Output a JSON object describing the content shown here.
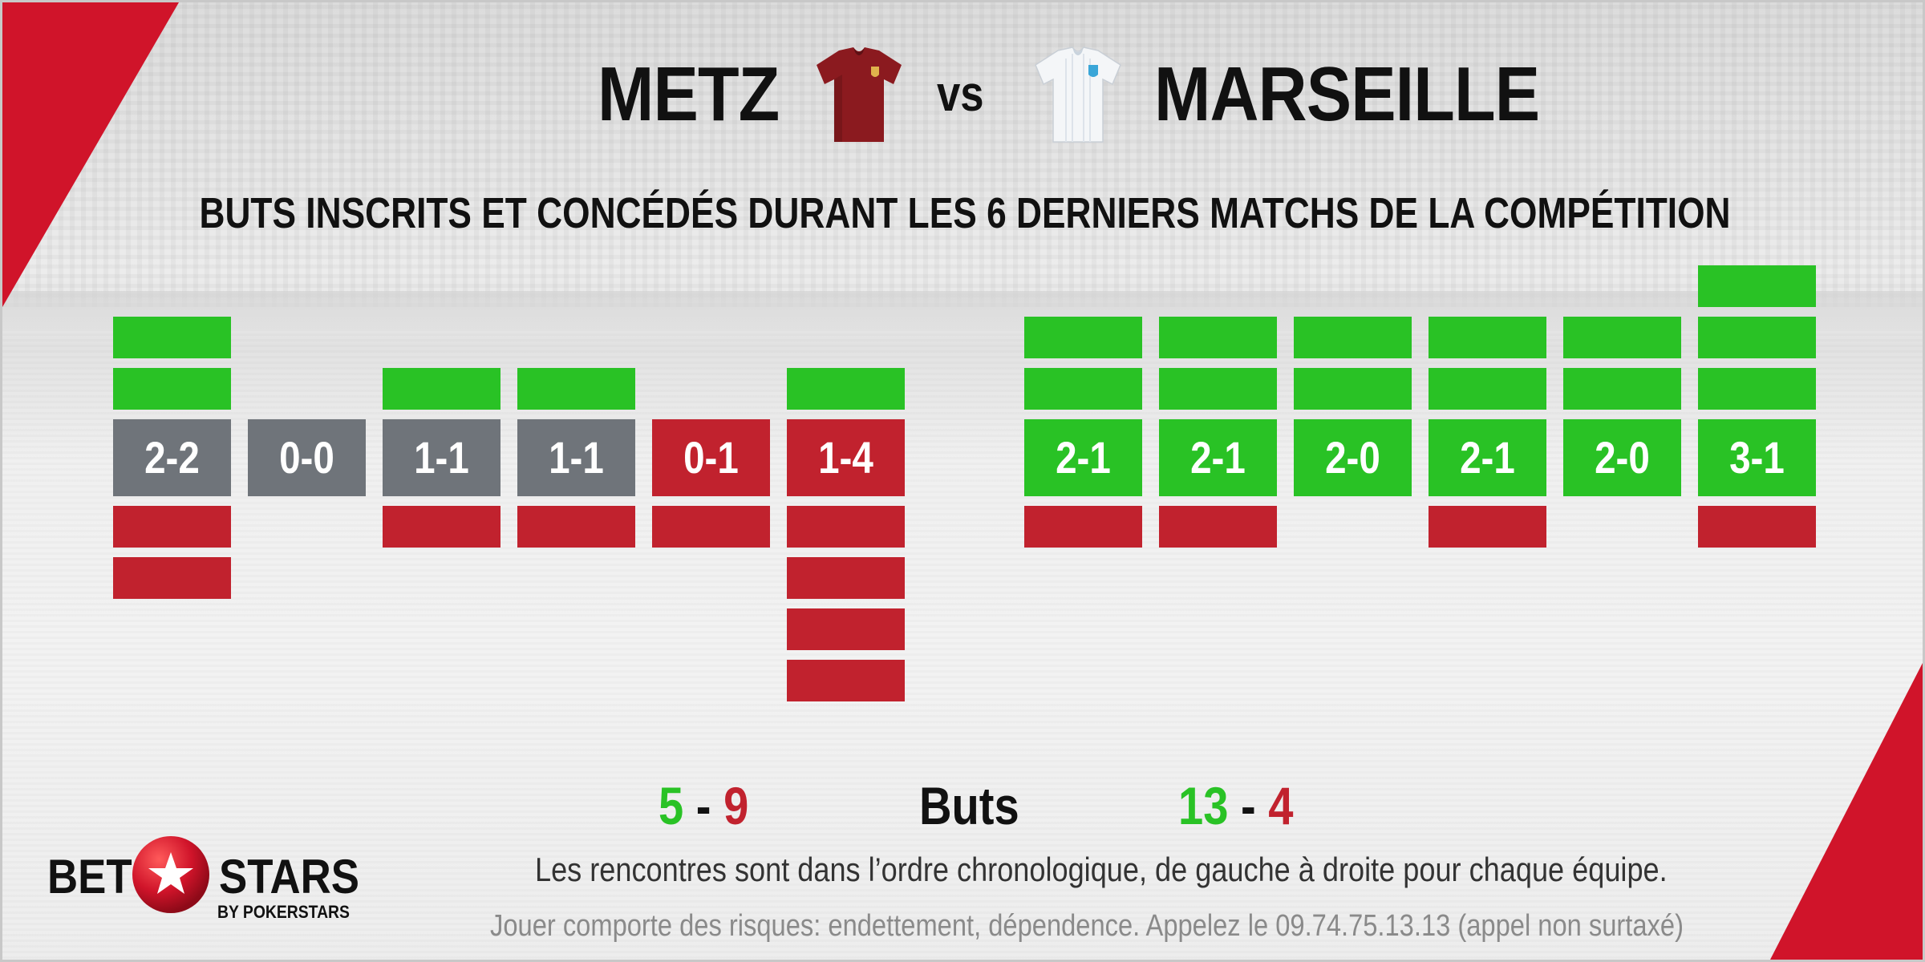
{
  "header": {
    "home_team": "METZ",
    "vs": "vs",
    "away_team": "MARSEILLE",
    "subtitle": "BUTS INSCRITS ET CONCÉDÉS DURANT LES 6 DERNIERS MATCHS DE LA COMPÉTITION"
  },
  "colors": {
    "brand_red": "#d0142a",
    "scored_green": "#29c225",
    "conceded_red": "#c1222e",
    "draw_gray": "#6f747a",
    "home_jersey": "#8b1a1f",
    "away_jersey": "#f4f6f8"
  },
  "icons": {
    "home_jersey": "metz-jersey-icon",
    "away_jersey": "marseille-jersey-icon",
    "logo_ball": "star-ball-icon"
  },
  "chart_data": [
    {
      "type": "bar",
      "team": "METZ",
      "matches": [
        {
          "score": "2-2",
          "scored": 2,
          "conceded": 2,
          "result": "draw"
        },
        {
          "score": "0-0",
          "scored": 0,
          "conceded": 0,
          "result": "draw"
        },
        {
          "score": "1-1",
          "scored": 1,
          "conceded": 1,
          "result": "draw"
        },
        {
          "score": "1-1",
          "scored": 1,
          "conceded": 1,
          "result": "draw"
        },
        {
          "score": "0-1",
          "scored": 0,
          "conceded": 1,
          "result": "loss"
        },
        {
          "score": "1-4",
          "scored": 1,
          "conceded": 4,
          "result": "loss"
        }
      ]
    },
    {
      "type": "bar",
      "team": "MARSEILLE",
      "matches": [
        {
          "score": "2-1",
          "scored": 2,
          "conceded": 1,
          "result": "win"
        },
        {
          "score": "2-1",
          "scored": 2,
          "conceded": 1,
          "result": "win"
        },
        {
          "score": "2-0",
          "scored": 2,
          "conceded": 0,
          "result": "win"
        },
        {
          "score": "2-1",
          "scored": 2,
          "conceded": 1,
          "result": "win"
        },
        {
          "score": "2-0",
          "scored": 2,
          "conceded": 0,
          "result": "win"
        },
        {
          "score": "3-1",
          "scored": 3,
          "conceded": 1,
          "result": "win"
        }
      ]
    }
  ],
  "totals": {
    "home_scored": "5",
    "home_conceded": "9",
    "label": "Buts",
    "away_scored": "13",
    "away_conceded": "4",
    "dash": "-"
  },
  "footer": {
    "note": "Les rencontres sont dans l’ordre chronologique, de gauche à droite pour chaque équipe.",
    "disclaimer": "Jouer comporte des risques: endettement, dépendence. Appelez le 09.74.75.13.13 (appel non surtaxé)"
  },
  "logo": {
    "bet": "BET",
    "stars": "STARS",
    "by": "BY POKERSTARS"
  }
}
